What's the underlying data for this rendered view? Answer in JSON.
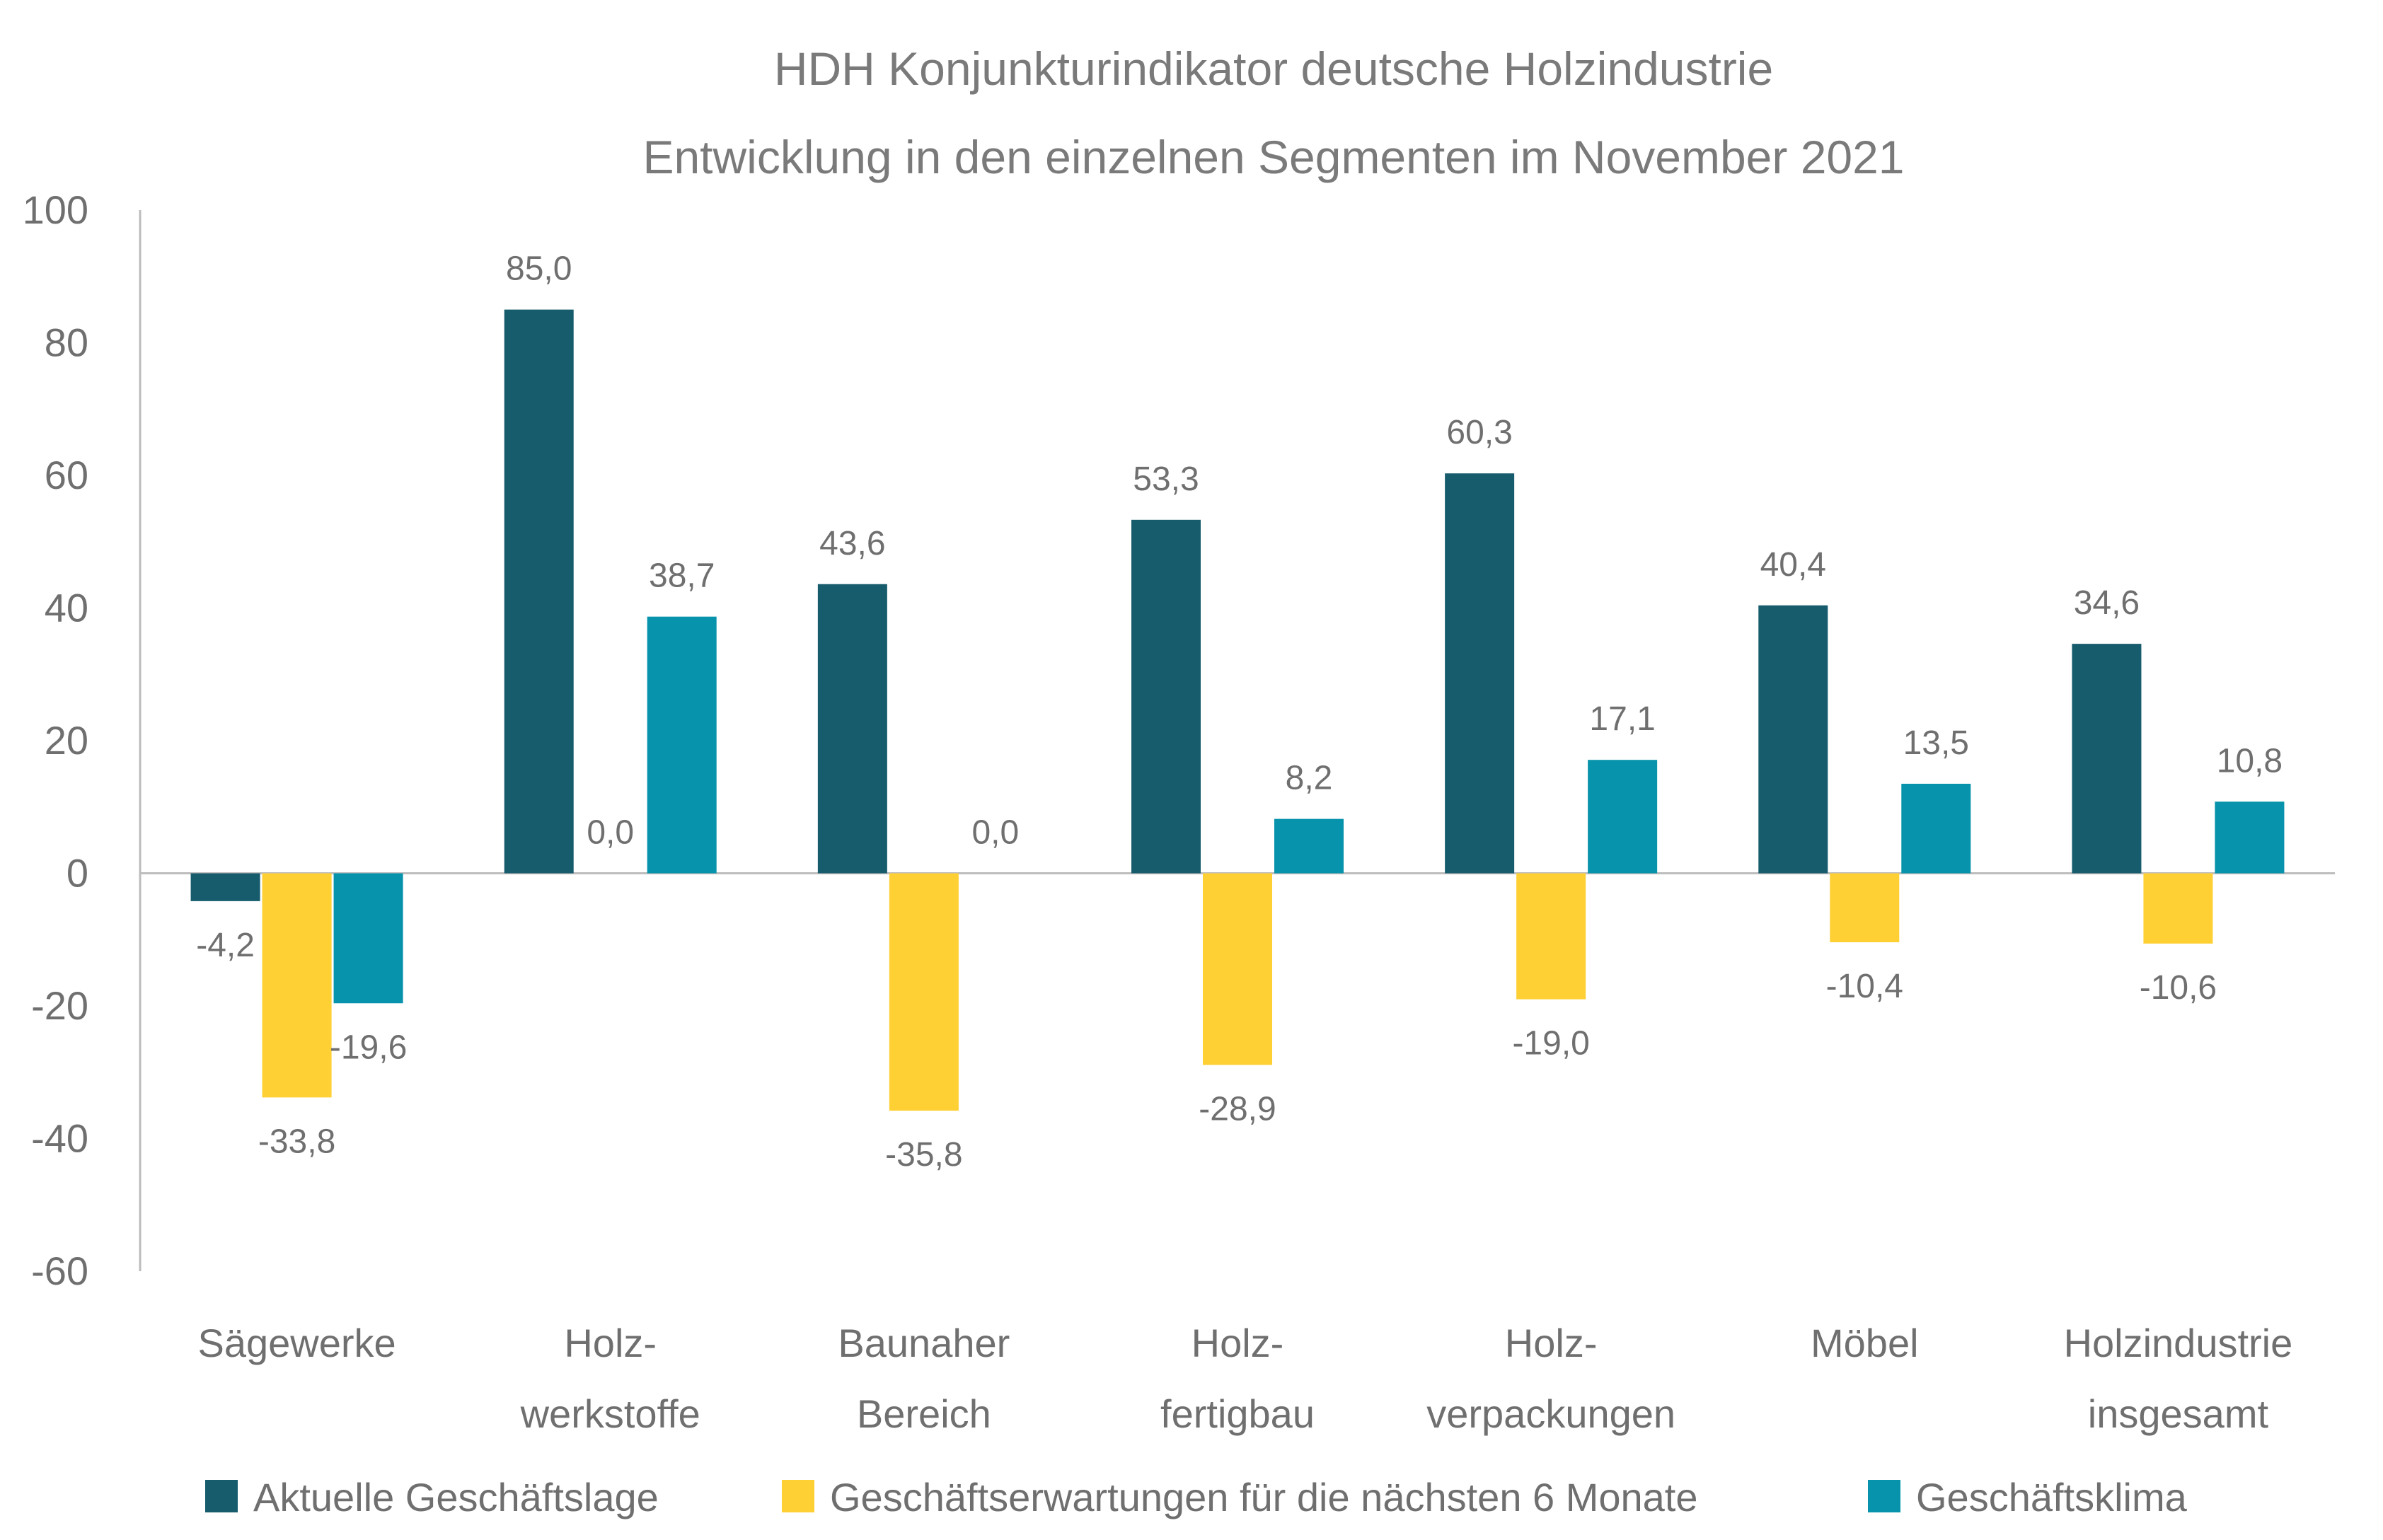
{
  "chart_data": {
    "type": "bar",
    "title": [
      "HDH Konjunkturindikator deutsche Holzindustrie",
      "Entwicklung in den einzelnen Segmenten im November 2021"
    ],
    "categories": [
      [
        "Sägewerke"
      ],
      [
        "Holz-",
        "werkstoffe"
      ],
      [
        "Baunaher",
        "Bereich"
      ],
      [
        "Holz-",
        "fertigbau"
      ],
      [
        "Holz-",
        "verpackungen"
      ],
      [
        "Möbel"
      ],
      [
        "Holzindustrie",
        "insgesamt"
      ]
    ],
    "series": [
      {
        "name": "Aktuelle Geschäftslage",
        "color": "#165c6c",
        "values": [
          -4.2,
          85.0,
          43.6,
          53.3,
          60.3,
          40.4,
          34.6
        ],
        "labels": [
          "-4,2",
          "85,0",
          "43,6",
          "53,3",
          "60,3",
          "40,4",
          "34,6"
        ]
      },
      {
        "name": "Geschäftserwartungen für die nächsten 6 Monate",
        "color": "#fed034",
        "values": [
          -33.8,
          0.0,
          -35.8,
          -28.9,
          -19.0,
          -10.4,
          -10.6
        ],
        "labels": [
          "-33,8",
          "0,0",
          "-35,8",
          "-28,9",
          "-19,0",
          "-10,4",
          "-10,6"
        ]
      },
      {
        "name": "Geschäftsklima",
        "color": "#0693ab",
        "values": [
          -19.6,
          38.7,
          0.0,
          8.2,
          17.1,
          13.5,
          10.8
        ],
        "labels": [
          "-19,6",
          "38,7",
          "0,0",
          "8,2",
          "17,1",
          "13,5",
          "10,8"
        ]
      }
    ],
    "ylim": [
      -60,
      100
    ],
    "yticks": [
      100,
      80,
      60,
      40,
      20,
      0,
      -20,
      -40,
      -60
    ],
    "xlabel": "",
    "ylabel": "",
    "grid": false,
    "legend": "bottom"
  }
}
